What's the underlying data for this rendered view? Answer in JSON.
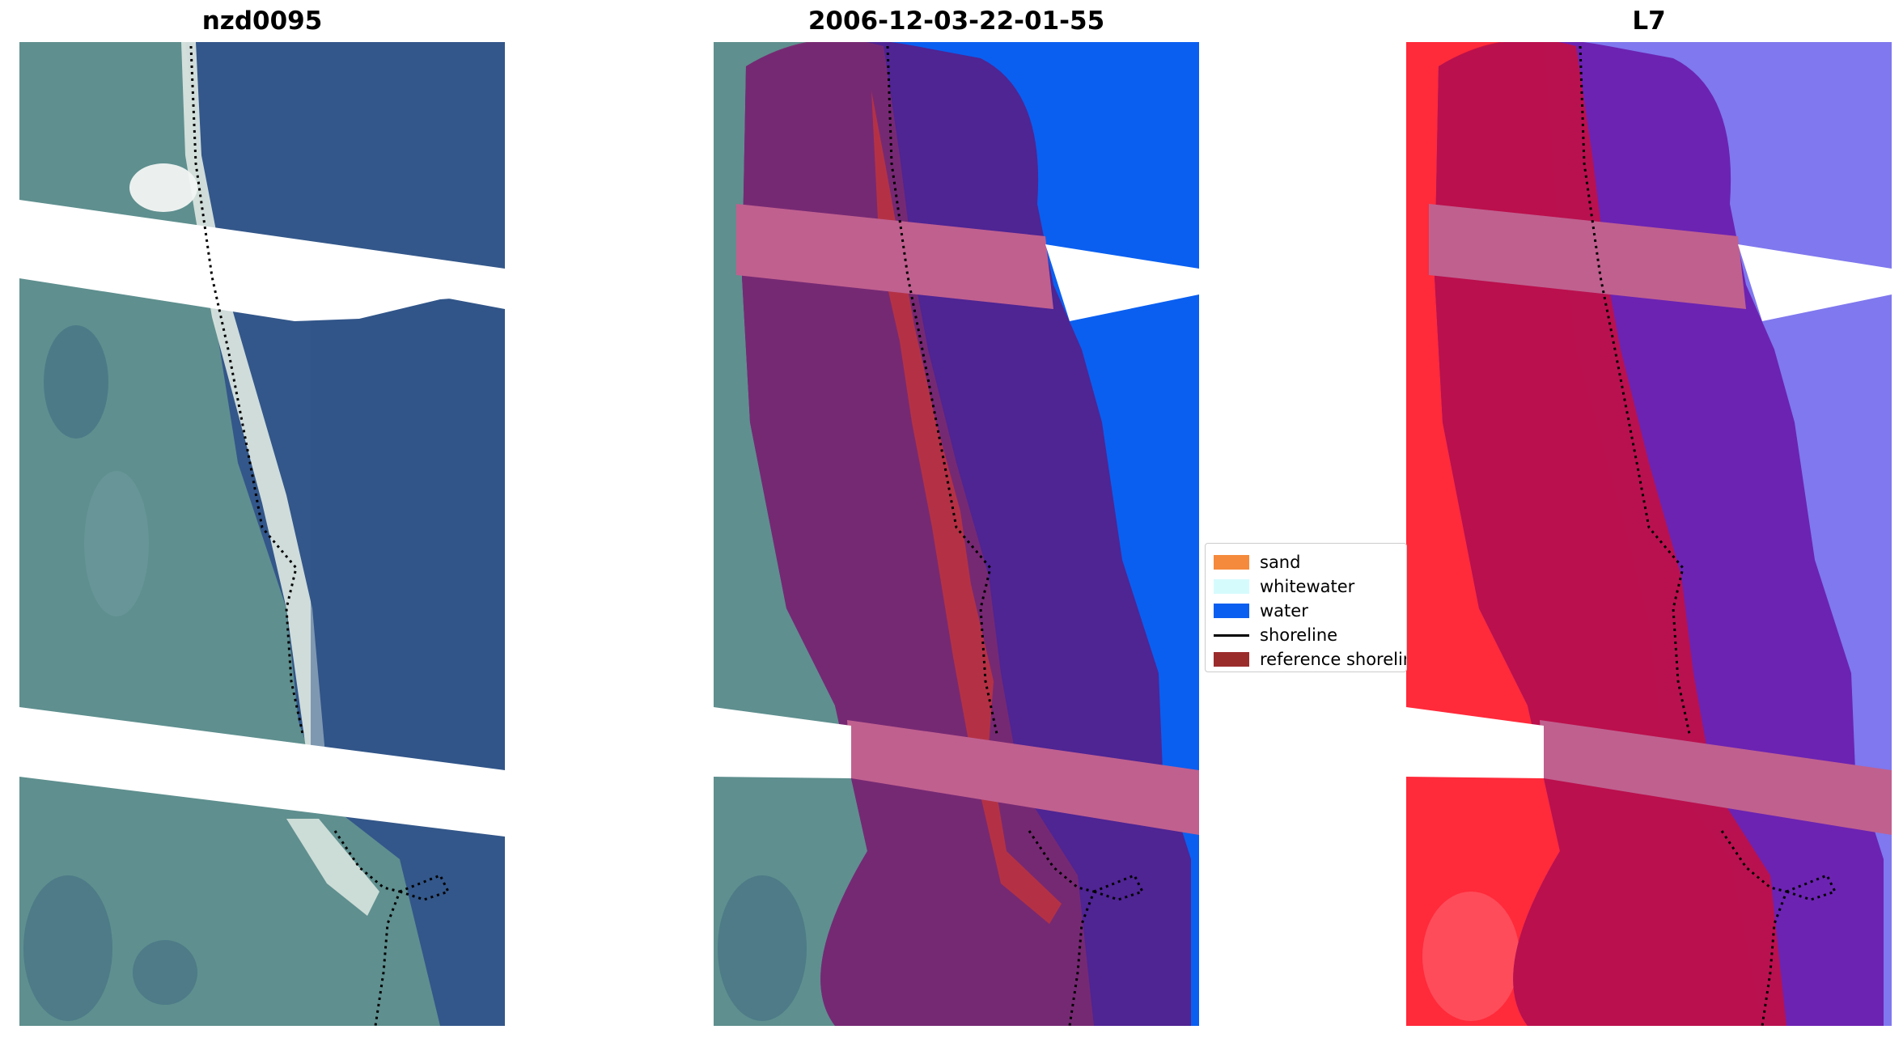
{
  "panels": [
    {
      "title": "nzd0095"
    },
    {
      "title": "2006-12-03-22-01-55"
    },
    {
      "title": "L7"
    }
  ],
  "legend": {
    "items": [
      {
        "label": "sand",
        "color": "#f58a3c",
        "kind": "patch"
      },
      {
        "label": "whitewater",
        "color": "#d6fbfd",
        "kind": "patch"
      },
      {
        "label": "water",
        "color": "#0a5ff0",
        "kind": "patch"
      },
      {
        "label": "shoreline",
        "color": "#000000",
        "kind": "line"
      },
      {
        "label": "reference shoreline",
        "color": "#9b2c2c",
        "kind": "patch"
      }
    ]
  },
  "colors": {
    "land": "#5f8f8f",
    "sea": "#33578a",
    "beach": "#d8e4de",
    "classified_water": "#0a5ff0",
    "buffer_overlay": "#7a2a70",
    "buffer_water": "#4f2493",
    "no_data_band": "#c0608f",
    "mndwi_land": "#ff2a3a",
    "mndwi_water": "#7f78ee"
  }
}
